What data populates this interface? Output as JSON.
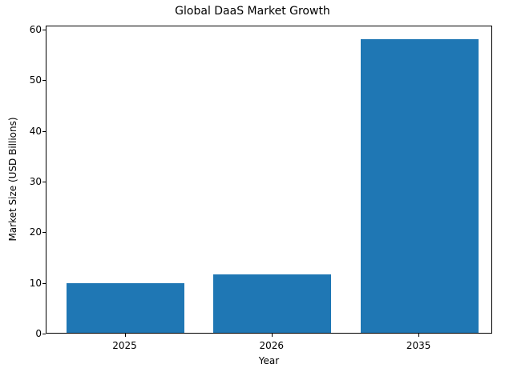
{
  "chart_data": {
    "type": "bar",
    "title": "Global DaaS Market Growth",
    "xlabel": "Year",
    "ylabel": "Market Size (USD Billions)",
    "categories": [
      "2025",
      "2026",
      "2035"
    ],
    "values": [
      9.8,
      11.5,
      57.9
    ],
    "ylim": [
      0,
      61
    ],
    "yticks": [
      0,
      10,
      20,
      30,
      40,
      50,
      60
    ],
    "grid": false,
    "bar_color": "#1f77b4"
  }
}
